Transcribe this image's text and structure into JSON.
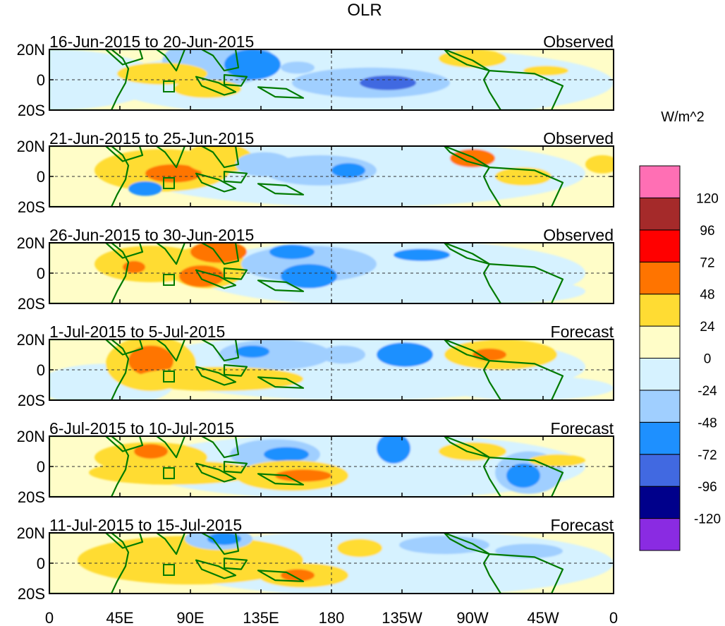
{
  "title": "OLR",
  "units": "W/m^2",
  "panels": [
    {
      "date_range": "16-Jun-2015 to 20-Jun-2015",
      "status": "Observed"
    },
    {
      "date_range": "21-Jun-2015 to 25-Jun-2015",
      "status": "Observed"
    },
    {
      "date_range": "26-Jun-2015 to 30-Jun-2015",
      "status": "Observed"
    },
    {
      "date_range": "1-Jul-2015 to 5-Jul-2015",
      "status": "Forecast"
    },
    {
      "date_range": "6-Jul-2015 to 10-Jul-2015",
      "status": "Forecast"
    },
    {
      "date_range": "11-Jul-2015 to 15-Jul-2015",
      "status": "Forecast"
    }
  ],
  "lat_ticks": [
    "20N",
    "0",
    "20S"
  ],
  "lon_ticks": [
    "0",
    "45E",
    "90E",
    "135E",
    "180",
    "135W",
    "90W",
    "45W",
    "0"
  ],
  "colorbar": {
    "colors": [
      "#8a2be2",
      "#00008b",
      "#4169e1",
      "#1e90ff",
      "#a0cfff",
      "#d6f2ff",
      "#fffdc8",
      "#ffdc33",
      "#ff7400",
      "#ff0000",
      "#a52a2a",
      "#ff6fb4"
    ],
    "ticks": [
      "-120",
      "-96",
      "-72",
      "-48",
      "-24",
      "0",
      "24",
      "48",
      "72",
      "96",
      "120"
    ]
  },
  "colors": {
    "coast": "#007a00",
    "ocean_neutral": "#fffdc8"
  }
}
